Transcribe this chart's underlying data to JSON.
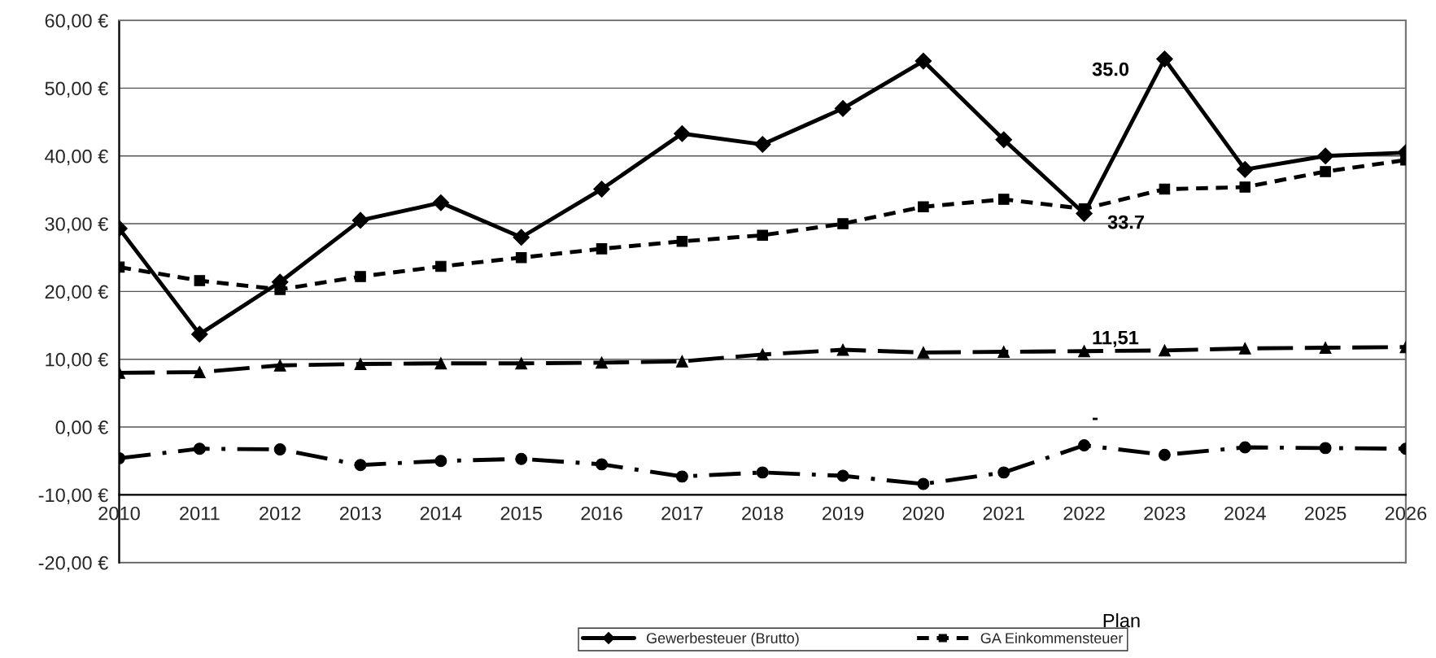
{
  "chart_data": {
    "type": "line",
    "categories": [
      "2010",
      "2011",
      "2012",
      "2013",
      "2014",
      "2015",
      "2016",
      "2017",
      "2018",
      "2019",
      "2020",
      "2021",
      "2022",
      "2023",
      "2024",
      "2025",
      "2026"
    ],
    "series": [
      {
        "name": "Gewerbesteuer (Brutto)",
        "color": "#000000",
        "marker": "diamond",
        "line_style": "solid",
        "values": [
          29.3,
          13.7,
          21.4,
          30.5,
          33.1,
          28.0,
          35.1,
          43.3,
          41.7,
          47.0,
          54.0,
          42.4,
          31.5,
          54.3,
          38.0,
          40.0,
          40.5
        ]
      },
      {
        "name": "GA Einkommensteuer",
        "color": "#000000",
        "marker": "square",
        "line_style": "dotted",
        "values": [
          23.6,
          21.6,
          20.3,
          22.2,
          23.7,
          25.0,
          26.3,
          27.4,
          28.3,
          30.0,
          32.5,
          33.6,
          32.2,
          35.1,
          35.4,
          37.7,
          39.4
        ]
      },
      {
        "color": "#000000",
        "marker": "triangle",
        "line_style": "dashed",
        "values": [
          8.0,
          8.1,
          9.1,
          9.3,
          9.4,
          9.4,
          9.5,
          9.7,
          10.7,
          11.4,
          11.0,
          11.1,
          11.2,
          11.3,
          11.6,
          11.7,
          11.8
        ]
      },
      {
        "color": "#000000",
        "marker": "circle",
        "line_style": "dashdot",
        "values": [
          -4.6,
          -3.2,
          -3.3,
          -5.6,
          -5.0,
          -4.7,
          -5.5,
          -7.3,
          -6.7,
          -7.2,
          -8.4,
          -6.7,
          -2.7,
          -4.1,
          -3.0,
          -3.1,
          -3.2
        ]
      }
    ],
    "ylim": [
      -20,
      60
    ],
    "yticks": [
      {
        "value": -20,
        "label": "-20,00 €"
      },
      {
        "value": -10,
        "label": "-10,00 €"
      },
      {
        "value": 0,
        "label": "0,00 €"
      },
      {
        "value": 10,
        "label": "10,00 €"
      },
      {
        "value": 20,
        "label": "20,00 €"
      },
      {
        "value": 30,
        "label": "30,00 €"
      },
      {
        "value": 40,
        "label": "40,00 €"
      },
      {
        "value": 50,
        "label": "50,00 €"
      },
      {
        "value": 60,
        "label": "60,00 €"
      }
    ],
    "grid": "y",
    "legend": "bottom",
    "annotations": [
      "35.0",
      "33.7",
      "11,51",
      "-",
      "Plan"
    ]
  }
}
